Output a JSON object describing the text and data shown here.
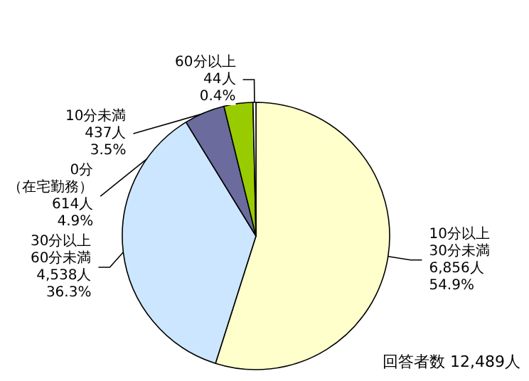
{
  "chart_data": {
    "type": "pie",
    "categories": [
      "10分以上\n30分未満",
      "30分以上\n60分未満",
      "0分（在宅勤務）",
      "10分未満",
      "60分以上"
    ],
    "values": [
      6856,
      4538,
      614,
      437,
      44
    ],
    "value_labels": [
      "6,856人\n54.9%",
      "4,538人\n36.3%",
      "614人\n4.9%",
      "437人\n3.5%",
      "44人\n0.4%"
    ],
    "colors": [
      "#ffffcc",
      "#cce6ff",
      "#6b6b9e",
      "#99cc00",
      "#ffffff"
    ],
    "annotations": [
      "回答者数 12,489人"
    ]
  }
}
